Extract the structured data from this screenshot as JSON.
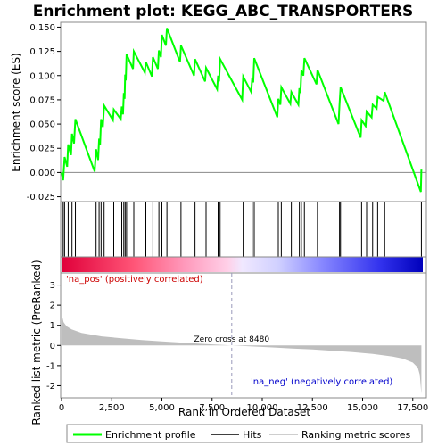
{
  "chart_data": {
    "type": "line",
    "title": "Enrichment plot: KEGG_ABC_TRANSPORTERS",
    "xlabel": "Rank in Ordered Dataset",
    "xlim": [
      0,
      18000
    ],
    "x_ticks": [
      0,
      2500,
      5000,
      7500,
      10000,
      12500,
      15000,
      17500
    ],
    "x_tick_labels": [
      "0",
      "2,500",
      "5,000",
      "7,500",
      "10,000",
      "12,500",
      "15,000",
      "17,500"
    ],
    "es_panel": {
      "ylabel": "Enrichment score (ES)",
      "ylim": [
        -0.03,
        0.155
      ],
      "y_ticks": [
        -0.025,
        0.0,
        0.025,
        0.05,
        0.075,
        0.1,
        0.125,
        0.15
      ],
      "y_tick_labels": [
        "-0.025",
        "0.000",
        "0.025",
        "0.050",
        "0.075",
        "0.100",
        "0.125",
        "0.150"
      ],
      "series_color": "#00ff00",
      "zero_line": 0,
      "points": [
        [
          0,
          0.0
        ],
        [
          80,
          -0.008
        ],
        [
          150,
          0.016
        ],
        [
          280,
          0.006
        ],
        [
          330,
          0.029
        ],
        [
          470,
          0.018
        ],
        [
          520,
          0.04
        ],
        [
          620,
          0.03
        ],
        [
          690,
          0.055
        ],
        [
          1650,
          0.001
        ],
        [
          1720,
          0.024
        ],
        [
          1820,
          0.013
        ],
        [
          1870,
          0.035
        ],
        [
          1920,
          0.029
        ],
        [
          1970,
          0.055
        ],
        [
          2060,
          0.047
        ],
        [
          2120,
          0.069
        ],
        [
          2560,
          0.054
        ],
        [
          2600,
          0.065
        ],
        [
          2950,
          0.055
        ],
        [
          3000,
          0.068
        ],
        [
          3060,
          0.06
        ],
        [
          3100,
          0.082
        ],
        [
          3140,
          0.076
        ],
        [
          3170,
          0.101
        ],
        [
          3200,
          0.095
        ],
        [
          3240,
          0.122
        ],
        [
          3560,
          0.107
        ],
        [
          3600,
          0.125
        ],
        [
          4150,
          0.103
        ],
        [
          4200,
          0.114
        ],
        [
          4500,
          0.099
        ],
        [
          4550,
          0.119
        ],
        [
          4800,
          0.107
        ],
        [
          4850,
          0.126
        ],
        [
          4950,
          0.119
        ],
        [
          5000,
          0.142
        ],
        [
          5200,
          0.131
        ],
        [
          5250,
          0.149
        ],
        [
          5900,
          0.114
        ],
        [
          5950,
          0.131
        ],
        [
          6600,
          0.1
        ],
        [
          6650,
          0.117
        ],
        [
          7150,
          0.094
        ],
        [
          7200,
          0.108
        ],
        [
          7750,
          0.086
        ],
        [
          7800,
          0.1
        ],
        [
          7850,
          0.094
        ],
        [
          7900,
          0.117
        ],
        [
          9000,
          0.075
        ],
        [
          9050,
          0.099
        ],
        [
          9450,
          0.083
        ],
        [
          9500,
          0.098
        ],
        [
          9550,
          0.093
        ],
        [
          9600,
          0.118
        ],
        [
          10750,
          0.057
        ],
        [
          10800,
          0.076
        ],
        [
          10900,
          0.07
        ],
        [
          10950,
          0.088
        ],
        [
          11400,
          0.071
        ],
        [
          11450,
          0.083
        ],
        [
          11800,
          0.07
        ],
        [
          11850,
          0.087
        ],
        [
          11900,
          0.082
        ],
        [
          11950,
          0.105
        ],
        [
          12050,
          0.1
        ],
        [
          12100,
          0.118
        ],
        [
          12700,
          0.091
        ],
        [
          12750,
          0.106
        ],
        [
          13800,
          0.05
        ],
        [
          13850,
          0.07
        ],
        [
          13900,
          0.088
        ],
        [
          14900,
          0.036
        ],
        [
          14950,
          0.054
        ],
        [
          15150,
          0.048
        ],
        [
          15200,
          0.063
        ],
        [
          15450,
          0.057
        ],
        [
          15500,
          0.07
        ],
        [
          15700,
          0.066
        ],
        [
          15750,
          0.078
        ],
        [
          16050,
          0.074
        ],
        [
          16100,
          0.083
        ],
        [
          17900,
          -0.02
        ],
        [
          17930,
          0.003
        ]
      ]
    },
    "hits": [
      80,
      150,
      330,
      520,
      690,
      1720,
      1870,
      1970,
      2120,
      2600,
      3000,
      3100,
      3170,
      3240,
      3600,
      4200,
      4550,
      4850,
      5000,
      5250,
      5950,
      6650,
      7200,
      7800,
      7900,
      9050,
      9500,
      9600,
      10800,
      10950,
      11450,
      11850,
      11950,
      12100,
      12750,
      13850,
      13900,
      14950,
      15200,
      15500,
      15750,
      16100,
      17930
    ],
    "metric_panel": {
      "ylabel": "Ranked list metric (PreRanked)",
      "ylim": [
        -2.6,
        3.6
      ],
      "y_ticks": [
        -2,
        -1,
        0,
        1,
        2,
        3
      ],
      "y_tick_labels": [
        "-2",
        "-1",
        "0",
        "1",
        "2",
        "3"
      ],
      "fill_color": "#bebebe",
      "zero_cross_rank": 8480,
      "zero_cross_label": "Zero cross at 8480",
      "pos_label": "'na_pos' (positively correlated)",
      "neg_label": "'na_neg' (negatively correlated)",
      "profile": [
        [
          0,
          1.75
        ],
        [
          30,
          1.45
        ],
        [
          100,
          1.15
        ],
        [
          250,
          0.95
        ],
        [
          500,
          0.8
        ],
        [
          1000,
          0.62
        ],
        [
          2000,
          0.45
        ],
        [
          3000,
          0.36
        ],
        [
          4000,
          0.27
        ],
        [
          5000,
          0.2
        ],
        [
          6000,
          0.14
        ],
        [
          7000,
          0.08
        ],
        [
          8480,
          0.0
        ],
        [
          9500,
          -0.05
        ],
        [
          10500,
          -0.1
        ],
        [
          11500,
          -0.15
        ],
        [
          12500,
          -0.2
        ],
        [
          13500,
          -0.26
        ],
        [
          14500,
          -0.33
        ],
        [
          15500,
          -0.42
        ],
        [
          16500,
          -0.55
        ],
        [
          17000,
          -0.65
        ],
        [
          17500,
          -0.85
        ],
        [
          17750,
          -1.1
        ],
        [
          17850,
          -1.45
        ],
        [
          17930,
          -2.4
        ]
      ]
    },
    "legend": {
      "position": "bottom",
      "items": [
        {
          "label": "Enrichment profile",
          "color": "#00ff00"
        },
        {
          "label": "Hits",
          "color": "#000000"
        },
        {
          "label": "Ranking metric scores",
          "color": "#bebebe"
        }
      ]
    }
  }
}
